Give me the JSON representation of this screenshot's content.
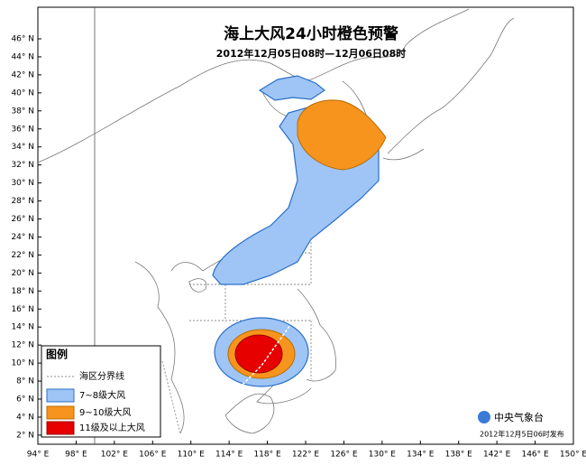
{
  "header": {
    "title": "海上大风24小时橙色预警",
    "subtitle": "2012年12月05日08时—12月06日08时"
  },
  "axes": {
    "lat_labels": [
      "46° N",
      "44° N",
      "42° N",
      "40° N",
      "38° N",
      "36° N",
      "34° N",
      "32° N",
      "30° N",
      "28° N",
      "26° N",
      "24° N",
      "22° N",
      "20° N",
      "18° N",
      "16° N",
      "14° N",
      "12° N",
      "10° N",
      "8° N",
      "6° N",
      "4° N",
      "2° N"
    ],
    "lon_labels": [
      "94° E",
      "98° E",
      "102° E",
      "106° E",
      "110° E",
      "114° E",
      "118° E",
      "122° E",
      "126° E",
      "130° E",
      "134° E",
      "138° E",
      "142° E",
      "146° E",
      "150° E"
    ]
  },
  "legend": {
    "title": "图例",
    "items": [
      "海区分界线",
      "7~8级大风",
      "9~10级大风",
      "11级及以上大风"
    ]
  },
  "footer": {
    "agency": "中央气象台",
    "issued": "2012年12月5日06时发布"
  }
}
